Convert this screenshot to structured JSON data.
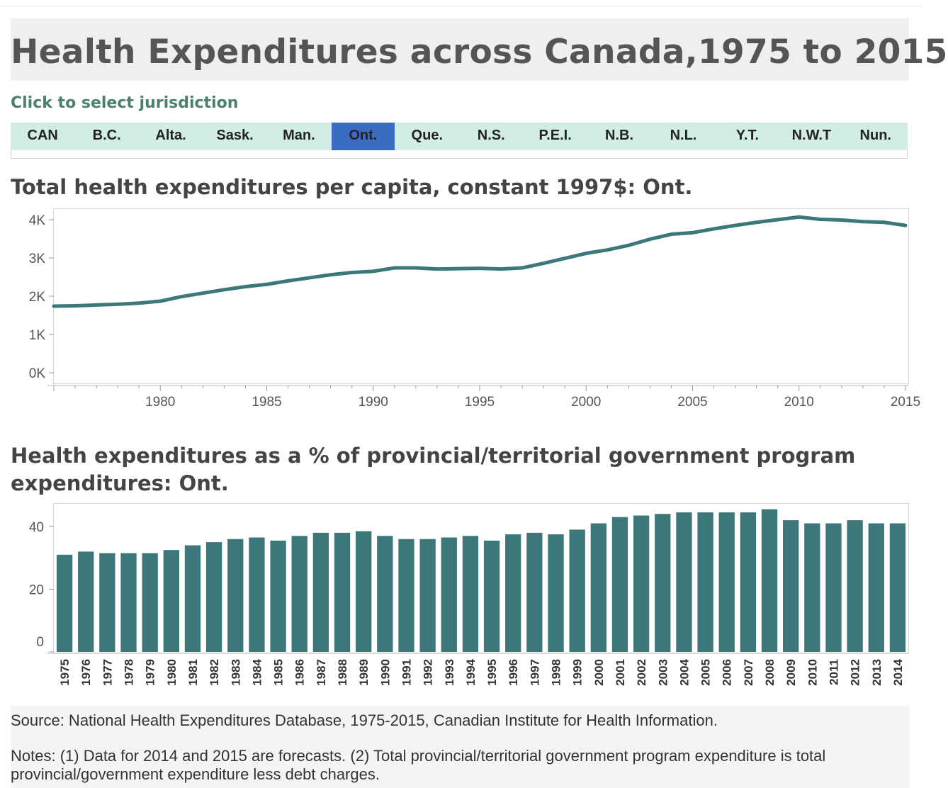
{
  "header": {
    "title": "Health Expenditures across Canada,1975 to 2015"
  },
  "selector": {
    "prompt": "Click to select jurisdiction",
    "items": [
      "CAN",
      "B.C.",
      "Alta.",
      "Sask.",
      "Man.",
      "Ont.",
      "Que.",
      "N.S.",
      "P.E.I.",
      "N.B.",
      "N.L.",
      "Y.T.",
      "N.W.T",
      "Nun."
    ],
    "selected": "Ont.",
    "selected_color": "#3a6cc4",
    "bar_color": "#d2ede4"
  },
  "line_section": {
    "title": "Total health expenditures per capita, constant 1997$: Ont."
  },
  "bar_section": {
    "title": "Health expenditures as a % of provincial/territorial government program expenditures: Ont."
  },
  "footer": {
    "source": "Source: National Health Expenditures Database, 1975-2015, Canadian Institute for Health Information.",
    "notes": "Notes: (1) Data for 2014 and 2015 are forecasts. (2) Total provincial/territorial government program expenditure is total provincial/government expenditure less debt charges."
  },
  "chart_data": [
    {
      "type": "line",
      "title": "Total health expenditures per capita, constant 1997$: Ont.",
      "color": "#3c7879",
      "x": [
        1975,
        1976,
        1977,
        1978,
        1979,
        1980,
        1981,
        1982,
        1983,
        1984,
        1985,
        1986,
        1987,
        1988,
        1989,
        1990,
        1991,
        1992,
        1993,
        1994,
        1995,
        1996,
        1997,
        1998,
        1999,
        2000,
        2001,
        2002,
        2003,
        2004,
        2005,
        2006,
        2007,
        2008,
        2009,
        2010,
        2011,
        2012,
        2013,
        2014,
        2015
      ],
      "y": [
        1740,
        1750,
        1770,
        1790,
        1820,
        1870,
        1990,
        2080,
        2170,
        2250,
        2310,
        2400,
        2480,
        2560,
        2620,
        2650,
        2740,
        2740,
        2710,
        2720,
        2730,
        2710,
        2740,
        2860,
        2990,
        3120,
        3210,
        3330,
        3490,
        3620,
        3660,
        3760,
        3850,
        3930,
        4000,
        4070,
        4010,
        3990,
        3950,
        3930,
        3850
      ],
      "ylim": [
        0,
        4200
      ],
      "yticks": [
        0,
        1000,
        2000,
        3000,
        4000
      ],
      "ytick_labels": [
        "0K",
        "1K",
        "2K",
        "3K",
        "4K"
      ],
      "xticks": [
        1980,
        1985,
        1990,
        1995,
        2000,
        2005,
        2010,
        2015
      ],
      "xtick_labels": [
        "1980",
        "1985",
        "1990",
        "1995",
        "2000",
        "2005",
        "2010",
        "2015"
      ],
      "grid": false
    },
    {
      "type": "bar",
      "title": "Health expenditures as a % of provincial/territorial government program expenditures: Ont.",
      "color": "#3c7879",
      "categories": [
        "1975",
        "1976",
        "1977",
        "1978",
        "1979",
        "1980",
        "1981",
        "1982",
        "1983",
        "1984",
        "1985",
        "1986",
        "1987",
        "1988",
        "1989",
        "1990",
        "1991",
        "1992",
        "1993",
        "1994",
        "1995",
        "1996",
        "1997",
        "1998",
        "1999",
        "2000",
        "2001",
        "2002",
        "2003",
        "2004",
        "2005",
        "2006",
        "2007",
        "2008",
        "2009",
        "2010",
        "2011",
        "2012",
        "2013",
        "2014"
      ],
      "values": [
        31,
        32,
        31.5,
        31.5,
        31.5,
        32.5,
        34,
        35,
        36,
        36.5,
        35.5,
        37,
        38,
        38,
        38.5,
        37,
        36,
        36,
        36.5,
        37,
        35.5,
        37.5,
        38,
        37.5,
        39,
        41,
        43,
        43.5,
        44,
        44.5,
        44.5,
        44.5,
        44.5,
        45.5,
        42,
        41,
        41,
        42,
        41,
        41
      ],
      "ylim": [
        0,
        47
      ],
      "yticks": [
        0,
        20,
        40
      ],
      "ytick_labels": [
        "0",
        "20",
        "40"
      ],
      "grid": false
    }
  ]
}
